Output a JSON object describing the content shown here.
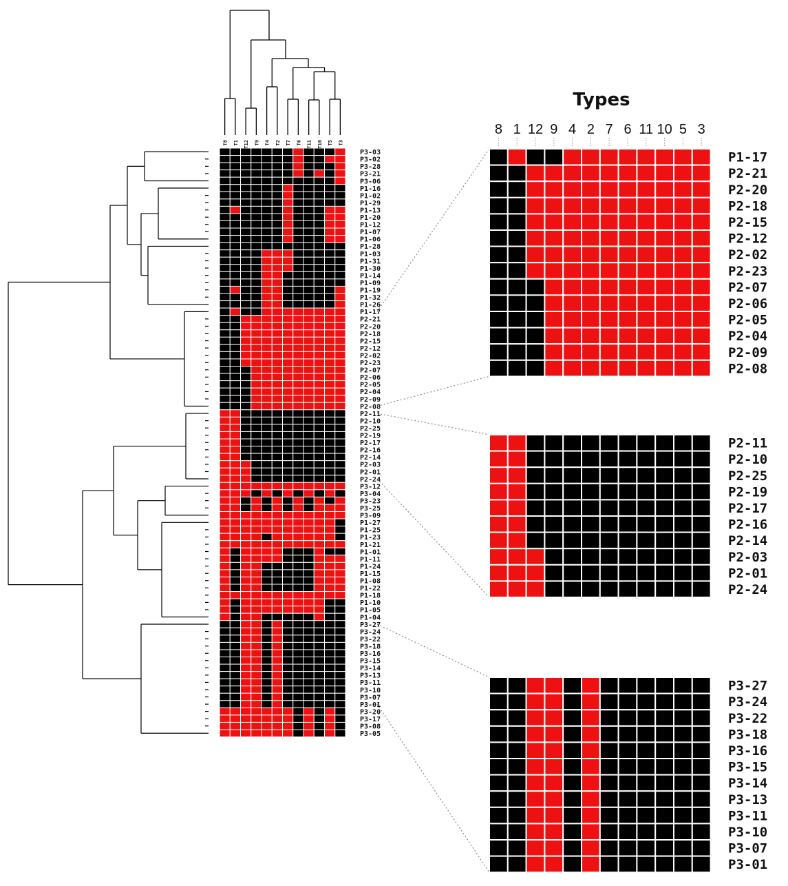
{
  "colors": {
    "present": "#ee1111",
    "absent": "#000000",
    "grid": "#ffffff",
    "dendro": "#000000",
    "connector": "#888888"
  },
  "chart_data": [
    {
      "type": "heatmap",
      "name": "main",
      "columns": [
        "T8",
        "T1",
        "T12",
        "T9",
        "T4",
        "T2",
        "T7",
        "T6",
        "T11",
        "T10",
        "T5",
        "T3"
      ],
      "rows": [
        "P3-03",
        "P3-02",
        "P3-28",
        "P3-21",
        "P3-06",
        "P1-16",
        "P1-02",
        "P1-29",
        "P1-13",
        "P1-20",
        "P1-12",
        "P1-07",
        "P1-06",
        "P1-28",
        "P1-03",
        "P1-31",
        "P1-30",
        "P1-14",
        "P1-09",
        "P1-19",
        "P1-32",
        "P1-26",
        "P1-17",
        "P2-21",
        "P2-20",
        "P2-18",
        "P2-15",
        "P2-12",
        "P2-02",
        "P2-23",
        "P2-07",
        "P2-06",
        "P2-05",
        "P2-04",
        "P2-09",
        "P2-08",
        "P2-11",
        "P2-10",
        "P2-25",
        "P2-19",
        "P2-17",
        "P2-16",
        "P2-14",
        "P2-03",
        "P2-01",
        "P2-24",
        "P3-12",
        "P3-04",
        "P3-23",
        "P3-25",
        "P3-09",
        "P1-27",
        "P1-25",
        "P1-23",
        "P1-21",
        "P1-01",
        "P1-11",
        "P1-24",
        "P1-15",
        "P1-08",
        "P1-22",
        "P1-18",
        "P1-10",
        "P1-05",
        "P1-04",
        "P3-27",
        "P3-24",
        "P3-22",
        "P3-18",
        "P3-16",
        "P3-15",
        "P3-14",
        "P3-13",
        "P3-11",
        "P3-10",
        "P3-07",
        "P3-01",
        "P3-20",
        "P3-17",
        "P3-08",
        "P3-05"
      ],
      "matrix": [
        "000000010001",
        "000000010011",
        "000000010001",
        "000000010101",
        "000000000001",
        "000000100000",
        "000000100000",
        "000000100000",
        "010000100011",
        "000000100011",
        "000000100011",
        "000000100011",
        "000000100011",
        "000000000000",
        "000011100000",
        "000011100000",
        "000011100000",
        "000011000000",
        "000011000000",
        "010011000001",
        "000011000001",
        "000011000001",
        "010011111111",
        "001111111111",
        "001111111111",
        "001111111111",
        "001111111111",
        "001111111111",
        "001111111111",
        "001111111111",
        "000111111111",
        "000111111111",
        "000111111111",
        "000111111111",
        "000111111111",
        "000111111111",
        "110000000000",
        "110000000000",
        "110000000000",
        "110000000000",
        "110000000000",
        "110000000000",
        "110000000000",
        "111000000000",
        "111000000000",
        "111000000000",
        "111111111111",
        "111010101010",
        "110101010101",
        "110101010111",
        "111111111111",
        "111111111110",
        "111111111110",
        "111101111110",
        "111111111111",
        "101111000100",
        "101111000111",
        "101100000111",
        "101100000111",
        "101100000111",
        "101100000111",
        "111111111111",
        "101111111100",
        "101111111100",
        "101100000100",
        "001101000000",
        "001101000000",
        "001101000000",
        "001101000000",
        "001101000000",
        "001101000000",
        "001101000000",
        "001101000000",
        "001101000000",
        "001101000000",
        "001101000000",
        "001101000000",
        "111111101010",
        "111111101010",
        "111111101010",
        "111111101010"
      ],
      "top_dendrogram_leaf_order": [
        "T8",
        "T1",
        "T12",
        "T9",
        "T4",
        "T2",
        "T7",
        "T6",
        "T11",
        "T10",
        "T5",
        "T3"
      ],
      "left_dendrogram": "hierarchical clustering of rows (drawn, unlabeled)"
    },
    {
      "type": "heatmap",
      "name": "zoom-1",
      "title": "Types",
      "columns": [
        "8",
        "1",
        "12",
        "9",
        "4",
        "2",
        "7",
        "6",
        "11",
        "10",
        "5",
        "3"
      ],
      "rows": [
        "P1-17",
        "P2-21",
        "P2-20",
        "P2-18",
        "P2-15",
        "P2-12",
        "P2-02",
        "P2-23",
        "P2-07",
        "P2-06",
        "P2-05",
        "P2-04",
        "P2-09",
        "P2-08"
      ],
      "matrix": [
        "010011111111",
        "001111111111",
        "001111111111",
        "001111111111",
        "001111111111",
        "001111111111",
        "001111111111",
        "001111111111",
        "000111111111",
        "000111111111",
        "000111111111",
        "000111111111",
        "000111111111",
        "000111111111"
      ]
    },
    {
      "type": "heatmap",
      "name": "zoom-2",
      "columns": [
        "8",
        "1",
        "12",
        "9",
        "4",
        "2",
        "7",
        "6",
        "11",
        "10",
        "5",
        "3"
      ],
      "rows": [
        "P2-11",
        "P2-10",
        "P2-25",
        "P2-19",
        "P2-17",
        "P2-16",
        "P2-14",
        "P2-03",
        "P2-01",
        "P2-24"
      ],
      "matrix": [
        "110000000000",
        "110000000000",
        "110000000000",
        "110000000000",
        "110000000000",
        "110000000000",
        "110000000000",
        "111000000000",
        "111000000000",
        "111000000000"
      ]
    },
    {
      "type": "heatmap",
      "name": "zoom-3",
      "columns": [
        "8",
        "1",
        "12",
        "9",
        "4",
        "2",
        "7",
        "6",
        "11",
        "10",
        "5",
        "3"
      ],
      "rows": [
        "P3-27",
        "P3-24",
        "P3-22",
        "P3-18",
        "P3-16",
        "P3-15",
        "P3-14",
        "P3-13",
        "P3-11",
        "P3-10",
        "P3-07",
        "P3-01"
      ],
      "matrix": [
        "001101000000",
        "001101000000",
        "001101000000",
        "001101000000",
        "001101000000",
        "001101000000",
        "001101000000",
        "001101000000",
        "001101000000",
        "001101000000",
        "001101000000",
        "001101000000"
      ]
    }
  ]
}
